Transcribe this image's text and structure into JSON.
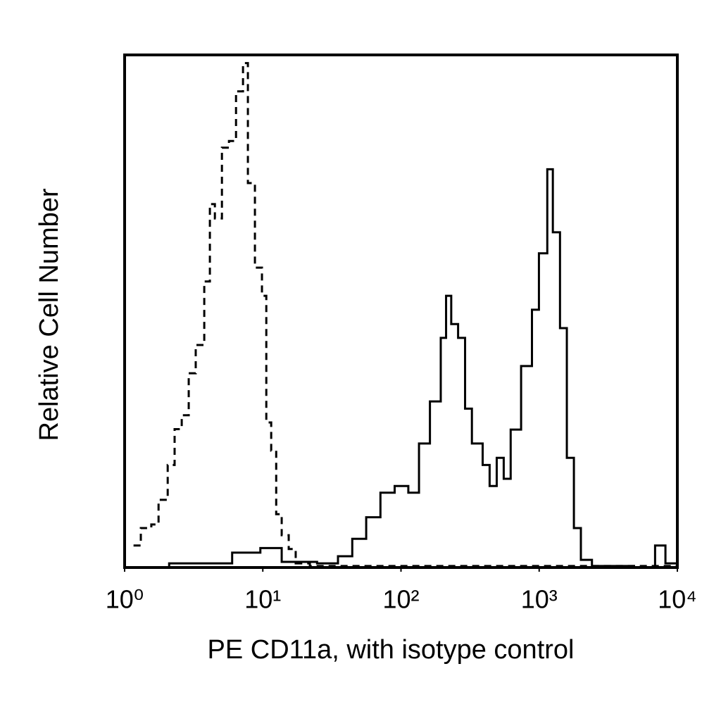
{
  "chart_data": {
    "type": "step",
    "xlabel": "PE CD11a, with isotype control",
    "ylabel": "Relative Cell Number",
    "xscale": "log",
    "xlim": [
      1,
      10000
    ],
    "ylim": [
      0,
      100
    ],
    "xticks": [
      {
        "value": 1,
        "label": "10⁰"
      },
      {
        "value": 10,
        "label": "10¹"
      },
      {
        "value": 100,
        "label": "10²"
      },
      {
        "value": 1000,
        "label": "10³"
      },
      {
        "value": 10000,
        "label": "10⁴"
      }
    ],
    "series": [
      {
        "name": "isotype control",
        "color": "#000000",
        "linestyle": "dashed",
        "x": [
          1.16,
          1.31,
          1.56,
          1.76,
          2.05,
          2.3,
          2.59,
          2.91,
          3.27,
          3.77,
          4.14,
          4.5,
          5.06,
          5.69,
          6.4,
          7.19,
          7.8,
          8.77,
          9.86,
          10.6,
          11.5,
          12.5,
          13.7,
          15.4,
          17.3,
          21.9,
          9800
        ],
        "values": [
          4.3,
          7.7,
          8.4,
          13.2,
          20,
          27,
          29.7,
          37.9,
          43.4,
          55.8,
          70.9,
          68.1,
          81.9,
          83.2,
          92.9,
          98.4,
          75,
          58.5,
          53,
          28.3,
          22.8,
          10.4,
          6.3,
          3.6,
          0.8,
          0.3,
          0
        ]
      },
      {
        "name": "PE CD11a",
        "color": "#000000",
        "linestyle": "solid",
        "x": [
          1,
          2.1,
          4.24,
          6,
          9.6,
          13.7,
          24.7,
          35,
          44.4,
          56,
          71,
          90,
          113,
          135,
          162,
          194,
          212,
          231,
          259,
          291,
          326,
          390,
          438,
          493,
          554,
          622,
          740,
          887,
          996,
          1145,
          1256,
          1415,
          1586,
          1784,
          2004,
          2410,
          4860,
          6900,
          8200,
          10000
        ],
        "values": [
          0,
          0.8,
          0.8,
          2.9,
          3.8,
          1.1,
          0.8,
          2.2,
          5.6,
          9.8,
          14.6,
          15.9,
          14.6,
          24.2,
          32.4,
          44.8,
          53,
          47.5,
          44.8,
          31,
          24.2,
          20,
          15.9,
          21.4,
          17.3,
          26.9,
          39.3,
          50.3,
          61.3,
          77.7,
          65.4,
          46.7,
          21.4,
          7.7,
          1.5,
          0.3,
          0,
          4.3,
          0.8,
          0
        ]
      }
    ]
  }
}
